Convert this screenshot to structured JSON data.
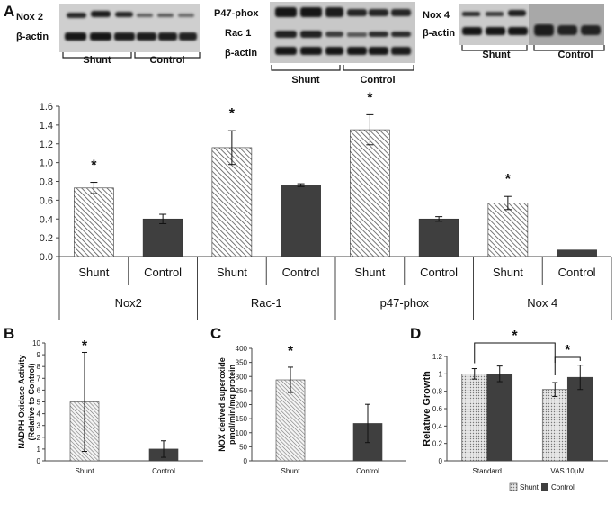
{
  "panels": {
    "A": "A",
    "B": "B",
    "C": "C",
    "D": "D"
  },
  "blots": {
    "left": {
      "rows": [
        "Nox 2",
        "β-actin"
      ],
      "groups": [
        "Shunt",
        "Control"
      ]
    },
    "middle": {
      "rows": [
        "P47-phox",
        "Rac 1",
        "β-actin"
      ],
      "groups": [
        "Shunt",
        "Control"
      ]
    },
    "right": {
      "rows": [
        "Nox 4",
        "β-actin"
      ],
      "groups": [
        "Shunt",
        "Control"
      ]
    }
  },
  "colors": {
    "control": "#3f3f3f",
    "shunt_hatch": "#555555",
    "axis": "#444444"
  },
  "chart_data": [
    {
      "id": "A",
      "type": "bar",
      "pattern": "hatched for Shunt, solid dark gray for Control",
      "ylim": [
        0,
        1.6
      ],
      "yticks": [
        "0.0",
        "0.2",
        "0.4",
        "0.6",
        "0.8",
        "1.0",
        "1.2",
        "1.4",
        "1.6"
      ],
      "groups": [
        "Nox2",
        "Rac-1",
        "p47-phox",
        "Nox 4"
      ],
      "categories": [
        "Shunt",
        "Control",
        "Shunt",
        "Control",
        "Shunt",
        "Control",
        "Shunt",
        "Control"
      ],
      "values": [
        0.73,
        0.4,
        1.16,
        0.76,
        1.35,
        0.4,
        0.57,
        0.07
      ],
      "errors": [
        0.06,
        0.05,
        0.18,
        0.015,
        0.16,
        0.025,
        0.07,
        0
      ],
      "significance": [
        "*",
        "",
        "*",
        "",
        "*",
        "",
        "*",
        ""
      ]
    },
    {
      "id": "B",
      "type": "bar",
      "ylabel": [
        "NADPH Oxidase Activity",
        "(Relative to Control)"
      ],
      "ylim": [
        0,
        10
      ],
      "yticks": [
        "0",
        "1",
        "2",
        "3",
        "4",
        "5",
        "6",
        "7",
        "8",
        "9",
        "10"
      ],
      "categories": [
        "Shunt",
        "Control"
      ],
      "values": [
        5.0,
        1.0
      ],
      "errors": [
        4.2,
        0.7
      ],
      "significance": [
        "*",
        ""
      ]
    },
    {
      "id": "C",
      "type": "bar",
      "ylabel": [
        "NOX derived superoxide",
        "pmol/min/mg protein"
      ],
      "ylim": [
        0,
        400
      ],
      "yticks": [
        "0",
        "50",
        "100",
        "150",
        "200",
        "250",
        "300",
        "350",
        "400"
      ],
      "categories": [
        "Shunt",
        "Control"
      ],
      "values": [
        288,
        133
      ],
      "errors": [
        45,
        68
      ],
      "significance": [
        "*",
        ""
      ]
    },
    {
      "id": "D",
      "type": "bar",
      "ylabel": "Relative Growth",
      "ylim": [
        0,
        1.2
      ],
      "yticks": [
        "0",
        "0.2",
        "0.4",
        "0.6",
        "0.8",
        "1",
        "1.2"
      ],
      "categories": [
        "Standard",
        "VAS 10µM"
      ],
      "series": [
        {
          "name": "Shunt",
          "values": [
            1.0,
            0.82
          ],
          "errors": [
            0.06,
            0.08
          ]
        },
        {
          "name": "Control",
          "values": [
            1.0,
            0.96
          ],
          "errors": [
            0.09,
            0.14
          ]
        }
      ],
      "significance": [
        "*",
        "*"
      ],
      "legend": "bottom"
    }
  ]
}
